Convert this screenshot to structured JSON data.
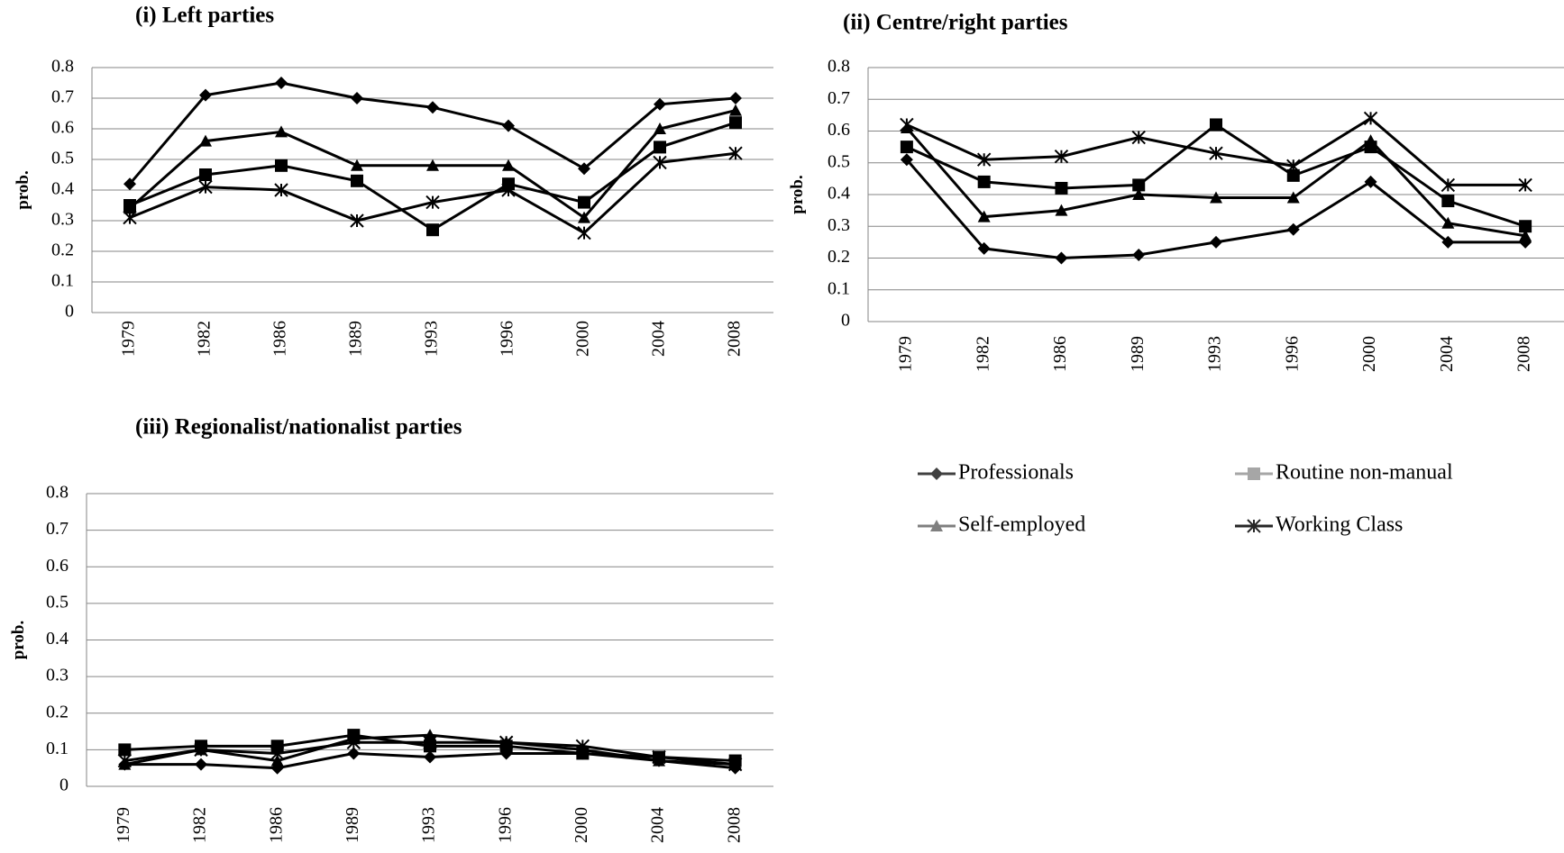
{
  "chart_data": [
    {
      "type": "line",
      "title": "(i) Left  parties",
      "ylabel": "prob.",
      "categories": [
        "1979",
        "1982",
        "1986",
        "1989",
        "1993",
        "1996",
        "2000",
        "2004",
        "2008"
      ],
      "ylim": [
        0,
        0.8
      ],
      "yticks": [
        0,
        0.1,
        0.2,
        0.3,
        0.4,
        0.5,
        0.6,
        0.7,
        0.8
      ],
      "grid": true,
      "series": [
        {
          "name": "Professionals",
          "color": "#000000",
          "legend_color": "#404040",
          "marker": "diamond",
          "values": [
            0.42,
            0.71,
            0.75,
            0.7,
            0.67,
            0.61,
            0.47,
            0.68,
            0.7
          ]
        },
        {
          "name": "Routine non-manual",
          "color": "#000000",
          "legend_color": "#a6a6a6",
          "marker": "square",
          "values": [
            0.35,
            0.45,
            0.48,
            0.43,
            0.27,
            0.42,
            0.36,
            0.54,
            0.62
          ]
        },
        {
          "name": "Self-employed",
          "color": "#000000",
          "legend_color": "#7f7f7f",
          "marker": "triangle",
          "values": [
            0.34,
            0.56,
            0.59,
            0.48,
            0.48,
            0.48,
            0.31,
            0.6,
            0.66
          ]
        },
        {
          "name": "Working Class",
          "color": "#000000",
          "legend_color": "#262626",
          "marker": "star",
          "values": [
            0.31,
            0.41,
            0.4,
            0.3,
            0.36,
            0.4,
            0.26,
            0.49,
            0.52
          ]
        }
      ]
    },
    {
      "type": "line",
      "title": "(ii) Centre/right   parties",
      "ylabel": "prob.",
      "categories": [
        "1979",
        "1982",
        "1986",
        "1989",
        "1993",
        "1996",
        "2000",
        "2004",
        "2008"
      ],
      "ylim": [
        0,
        0.8
      ],
      "yticks": [
        0,
        0.1,
        0.2,
        0.3,
        0.4,
        0.5,
        0.6,
        0.7,
        0.8
      ],
      "grid": true,
      "series": [
        {
          "name": "Professionals",
          "color": "#000000",
          "marker": "diamond",
          "values": [
            0.51,
            0.23,
            0.2,
            0.21,
            0.25,
            0.29,
            0.44,
            0.25,
            0.25
          ]
        },
        {
          "name": "Routine non-manual",
          "color": "#000000",
          "marker": "square",
          "values": [
            0.55,
            0.44,
            0.42,
            0.43,
            0.62,
            0.46,
            0.55,
            0.38,
            0.3
          ]
        },
        {
          "name": "Self-employed",
          "color": "#000000",
          "marker": "triangle",
          "values": [
            0.61,
            0.33,
            0.35,
            0.4,
            0.39,
            0.39,
            0.57,
            0.31,
            0.27
          ]
        },
        {
          "name": "Working Class",
          "color": "#000000",
          "marker": "star",
          "values": [
            0.62,
            0.51,
            0.52,
            0.58,
            0.53,
            0.49,
            0.64,
            0.43,
            0.43
          ]
        }
      ]
    },
    {
      "type": "line",
      "title": "(iii) Regionalist/nationalist parties",
      "ylabel": "prob.",
      "categories": [
        "1979",
        "1982",
        "1986",
        "1989",
        "1993",
        "1996",
        "2000",
        "2004",
        "2008"
      ],
      "ylim": [
        0,
        0.8
      ],
      "yticks": [
        0,
        0.1,
        0.2,
        0.3,
        0.4,
        0.5,
        0.6,
        0.7,
        0.8
      ],
      "grid": true,
      "series": [
        {
          "name": "Professionals",
          "color": "#000000",
          "marker": "diamond",
          "values": [
            0.06,
            0.06,
            0.05,
            0.09,
            0.08,
            0.09,
            0.09,
            0.07,
            0.05
          ]
        },
        {
          "name": "Routine non-manual",
          "color": "#000000",
          "marker": "square",
          "values": [
            0.1,
            0.11,
            0.11,
            0.14,
            0.11,
            0.11,
            0.09,
            0.08,
            0.07
          ]
        },
        {
          "name": "Self-employed",
          "color": "#000000",
          "marker": "triangle",
          "values": [
            0.06,
            0.1,
            0.07,
            0.13,
            0.14,
            0.12,
            0.1,
            0.07,
            0.06
          ]
        },
        {
          "name": "Working Class",
          "color": "#000000",
          "marker": "star",
          "values": [
            0.07,
            0.1,
            0.09,
            0.12,
            0.12,
            0.12,
            0.11,
            0.08,
            0.06
          ]
        }
      ]
    }
  ]
}
